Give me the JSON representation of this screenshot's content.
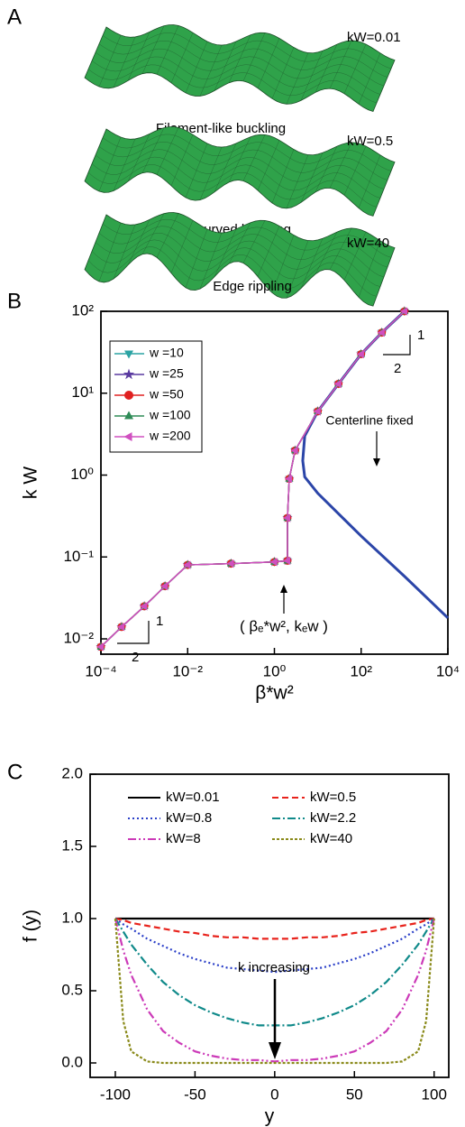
{
  "panel_a": {
    "label": "A",
    "items": [
      {
        "parameter": "kW=0.01",
        "caption": "Filament-like buckling"
      },
      {
        "parameter": "kW=0.5",
        "caption": "Doubly-curved buckling"
      },
      {
        "parameter": "kW=40",
        "caption": "Edge rippling"
      }
    ]
  },
  "chart_data": [
    {
      "type": "line",
      "panel": "B",
      "x_label": "β*w²",
      "y_label": "k W",
      "log_x": true,
      "log_y": true,
      "grid": false,
      "legend": "upper left",
      "xlim": [
        0.0001,
        10000
      ],
      "ylim": [
        0.0065,
        100
      ],
      "xticks": [
        {
          "value": 0.0001,
          "label": "10⁻⁴"
        },
        {
          "value": 0.01,
          "label": "10⁻²"
        },
        {
          "value": 1,
          "label": "10⁰"
        },
        {
          "value": 100,
          "label": "10²"
        },
        {
          "value": 10000,
          "label": "10⁴"
        }
      ],
      "yticks": [
        {
          "value": 0.01,
          "label": "10⁻²"
        },
        {
          "value": 0.1,
          "label": "10⁻¹"
        },
        {
          "value": 1,
          "label": "10⁰"
        },
        {
          "value": 10,
          "label": "10¹"
        },
        {
          "value": 100,
          "label": "10²"
        }
      ],
      "x": [
        0.0001,
        0.0003,
        0.001,
        0.003,
        0.01,
        0.1,
        1,
        2,
        2,
        2.2,
        3,
        10,
        30,
        100,
        300,
        1000
      ],
      "series": [
        {
          "name": "w =10",
          "color": "#2aa3a3",
          "marker": "triangle-down",
          "values": [
            0.008,
            0.014,
            0.025,
            0.044,
            0.08,
            0.083,
            0.087,
            0.09,
            0.3,
            0.9,
            2,
            6,
            13,
            30,
            55,
            100
          ]
        },
        {
          "name": "w =25",
          "color": "#5a3aa0",
          "marker": "star",
          "values": [
            0.008,
            0.014,
            0.025,
            0.044,
            0.08,
            0.083,
            0.087,
            0.09,
            0.3,
            0.9,
            2,
            6,
            13,
            30,
            55,
            100
          ]
        },
        {
          "name": "w =50",
          "color": "#e02020",
          "marker": "circle",
          "values": [
            0.008,
            0.014,
            0.025,
            0.044,
            0.08,
            0.083,
            0.087,
            0.09,
            0.3,
            0.9,
            2,
            6,
            13,
            30,
            55,
            100
          ]
        },
        {
          "name": "w =100",
          "color": "#2e8b57",
          "marker": "triangle-up",
          "values": [
            0.008,
            0.014,
            0.025,
            0.044,
            0.08,
            0.083,
            0.087,
            0.09,
            0.3,
            0.9,
            2,
            6,
            13,
            30,
            55,
            100
          ]
        },
        {
          "name": "w =200",
          "color": "#d050c0",
          "marker": "triangle-left",
          "values": [
            0.008,
            0.014,
            0.025,
            0.044,
            0.08,
            0.083,
            0.087,
            0.09,
            0.3,
            0.9,
            2,
            6,
            13,
            30,
            55,
            100
          ]
        }
      ],
      "reference_curve": {
        "color": "#2b45a8",
        "x": [
          1000,
          300,
          100,
          30,
          10,
          5,
          4.5,
          5,
          10,
          100,
          1000,
          10000
        ],
        "values": [
          100,
          55,
          30,
          13,
          6,
          3,
          1.5,
          0.95,
          0.6,
          0.18,
          0.058,
          0.018
        ]
      },
      "curve_label": "Centerline fixed",
      "point_label": "( βₑ*w², kₑw )",
      "slope_low": [
        "1",
        "2"
      ],
      "slope_high": [
        "1",
        "2"
      ]
    },
    {
      "type": "line",
      "panel": "C",
      "x_label": "y",
      "y_label": "f (y)",
      "grid": false,
      "legend": "upper center",
      "xlim": [
        -115.8,
        109.2
      ],
      "ylim": [
        -0.1,
        2.0
      ],
      "xticks": [
        -100,
        -50,
        0,
        50,
        100
      ],
      "yticks": [
        {
          "value": 0,
          "label": "0.0"
        },
        {
          "value": 0.5,
          "label": "0.5"
        },
        {
          "value": 1,
          "label": "1.0"
        },
        {
          "value": 1.5,
          "label": "1.5"
        },
        {
          "value": 2,
          "label": "2.0"
        }
      ],
      "x": [
        -100,
        -95,
        -90,
        -80,
        -70,
        -60,
        -50,
        -40,
        -30,
        -20,
        -10,
        0,
        10,
        20,
        30,
        40,
        50,
        60,
        70,
        80,
        90,
        95,
        100
      ],
      "series": [
        {
          "name": "kW=0.01",
          "color": "#000000",
          "style": "solid",
          "values": [
            1,
            1,
            1,
            1,
            1,
            1,
            1,
            1,
            1,
            1,
            1,
            1,
            1,
            1,
            1,
            1,
            1,
            1,
            1,
            1,
            1,
            1,
            1
          ]
        },
        {
          "name": "kW=0.5",
          "color": "#e8231c",
          "style": "dashed",
          "values": [
            1.0,
            0.99,
            0.97,
            0.95,
            0.93,
            0.91,
            0.9,
            0.88,
            0.87,
            0.87,
            0.86,
            0.86,
            0.86,
            0.87,
            0.87,
            0.88,
            0.9,
            0.91,
            0.93,
            0.95,
            0.97,
            0.99,
            1.0
          ]
        },
        {
          "name": "kW=0.8",
          "color": "#2a3fc8",
          "style": "dotted",
          "values": [
            1.0,
            0.96,
            0.93,
            0.86,
            0.81,
            0.76,
            0.72,
            0.69,
            0.66,
            0.65,
            0.64,
            0.63,
            0.64,
            0.65,
            0.66,
            0.69,
            0.72,
            0.76,
            0.81,
            0.86,
            0.93,
            0.96,
            1.0
          ]
        },
        {
          "name": "kW=2.2",
          "color": "#108a8a",
          "style": "dashdot",
          "values": [
            1.0,
            0.91,
            0.82,
            0.68,
            0.56,
            0.47,
            0.4,
            0.35,
            0.31,
            0.28,
            0.26,
            0.26,
            0.26,
            0.28,
            0.31,
            0.35,
            0.4,
            0.47,
            0.56,
            0.68,
            0.82,
            0.91,
            1.0
          ]
        },
        {
          "name": "kW=8",
          "color": "#cc3ab8",
          "style": "dashdotdot",
          "values": [
            1.0,
            0.78,
            0.61,
            0.37,
            0.22,
            0.14,
            0.08,
            0.05,
            0.03,
            0.02,
            0.02,
            0.01,
            0.02,
            0.02,
            0.03,
            0.05,
            0.08,
            0.14,
            0.22,
            0.37,
            0.61,
            0.78,
            1.0
          ]
        },
        {
          "name": "kW=40",
          "color": "#8a8a1a",
          "style": "shortdash",
          "values": [
            1.0,
            0.29,
            0.08,
            0.01,
            0,
            0,
            0,
            0,
            0,
            0,
            0,
            0,
            0,
            0,
            0,
            0,
            0,
            0,
            0,
            0.01,
            0.08,
            0.29,
            1.0
          ]
        }
      ],
      "annotation": "k increasing"
    }
  ]
}
